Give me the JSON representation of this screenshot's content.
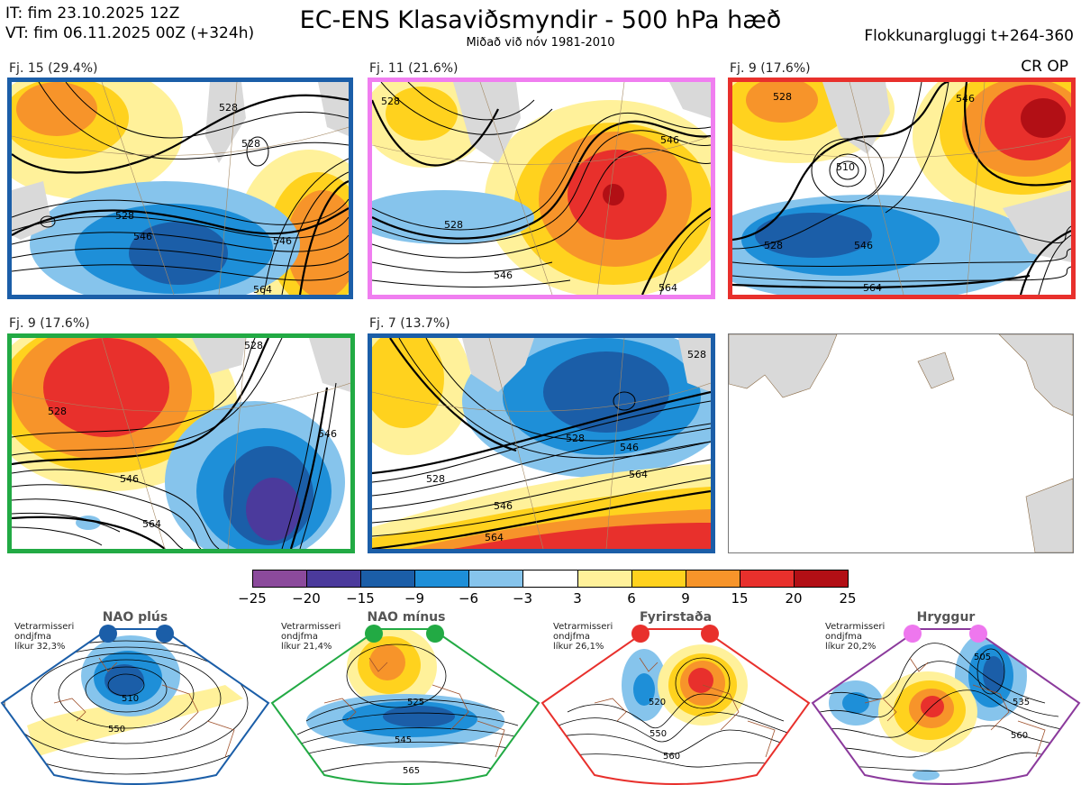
{
  "header": {
    "issue_line": "IT: fim 23.10.2025 12Z",
    "valid_line": "VT: fim 06.11.2025 00Z  (+324h)",
    "title": "EC-ENS Klasaviðsmyndir - 500 hPa hæð",
    "subtitle": "Miðað við nóv 1981-2010",
    "window": "Flokkunargluggi t+264-360",
    "cr_op": "CR OP"
  },
  "panels": [
    {
      "label": "Fj. 15 (29.4%)",
      "border_color": "#1b5ea8",
      "contour_labels": [
        "528",
        "528",
        "528",
        "546",
        "546",
        "564"
      ]
    },
    {
      "label": "Fj. 11 (21.6%)",
      "border_color": "#f07ef0",
      "contour_labels": [
        "528",
        "528",
        "546",
        "546",
        "564"
      ]
    },
    {
      "label": "Fj. 9 (17.6%)",
      "border_color": "#e8302c",
      "contour_labels": [
        "528",
        "510",
        "546",
        "546",
        "528",
        "564"
      ]
    },
    {
      "label": "Fj. 9 (17.6%)",
      "border_color": "#22aa44",
      "contour_labels": [
        "528",
        "528",
        "546",
        "546",
        "564"
      ]
    },
    {
      "label": "Fj. 7 (13.7%)",
      "border_color": "#1b5ea8",
      "contour_labels": [
        "528",
        "528",
        "528",
        "546",
        "546",
        "564",
        "564"
      ]
    }
  ],
  "colorbar": {
    "ticks": [
      "−25",
      "−20",
      "−15",
      "−9",
      "−6",
      "−3",
      "3",
      "6",
      "9",
      "15",
      "20",
      "25"
    ],
    "colors": [
      "#8b4a9c",
      "#4b3a9c",
      "#1b5ea8",
      "#1e8fd8",
      "#86c4ec",
      "#ffffff",
      "#fff19a",
      "#ffd21e",
      "#f7942a",
      "#e8302c",
      "#b20f15"
    ]
  },
  "regimes": [
    {
      "name": "NAO plús",
      "note": [
        "Vetrarmisseri",
        "ondjfma",
        "líkur 32,3%"
      ],
      "dot_color": "#1b5ea8",
      "border_color": "#1b5ea8",
      "labels": [
        "510",
        "550"
      ]
    },
    {
      "name": "NAO mínus",
      "note": [
        "Vetrarmisseri",
        "ondjfma",
        "líkur 21,4%"
      ],
      "dot_color": "#22aa44",
      "border_color": "#22aa44",
      "labels": [
        "525",
        "545",
        "565"
      ]
    },
    {
      "name": "Fyrirstaða",
      "note": [
        "Vetrarmisseri",
        "ondjfma",
        "líkur 26,1%"
      ],
      "dot_color": "#e8302c",
      "border_color": "#e8302c",
      "labels": [
        "520",
        "550",
        "560"
      ]
    },
    {
      "name": "Hryggur",
      "note": [
        "Vetrarmisseri",
        "ondjfma",
        "líkur 20,2%"
      ],
      "dot_color": "#ee77ee",
      "border_color": "#8b3a9c",
      "labels": [
        "505",
        "535",
        "560"
      ]
    }
  ]
}
